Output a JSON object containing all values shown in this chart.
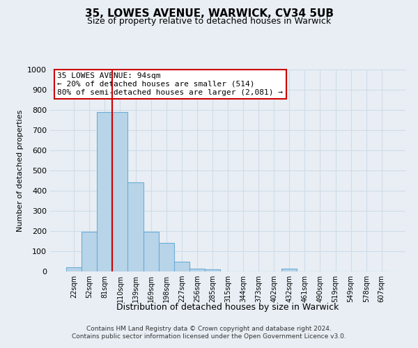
{
  "title": "35, LOWES AVENUE, WARWICK, CV34 5UB",
  "subtitle": "Size of property relative to detached houses in Warwick",
  "xlabel": "Distribution of detached houses by size in Warwick",
  "ylabel": "Number of detached properties",
  "bar_labels": [
    "22sqm",
    "52sqm",
    "81sqm",
    "110sqm",
    "139sqm",
    "169sqm",
    "198sqm",
    "227sqm",
    "256sqm",
    "285sqm",
    "315sqm",
    "344sqm",
    "373sqm",
    "402sqm",
    "432sqm",
    "461sqm",
    "490sqm",
    "519sqm",
    "549sqm",
    "578sqm",
    "607sqm"
  ],
  "bar_heights": [
    20,
    195,
    790,
    790,
    440,
    195,
    140,
    50,
    15,
    10,
    0,
    0,
    0,
    0,
    15,
    0,
    0,
    0,
    0,
    0,
    0
  ],
  "bar_color": "#b8d4e8",
  "bar_edge_color": "#6baed6",
  "property_line_color": "#cc0000",
  "annotation_text": "35 LOWES AVENUE: 94sqm\n← 20% of detached houses are smaller (514)\n80% of semi-detached houses are larger (2,081) →",
  "ylim": [
    0,
    1000
  ],
  "yticks": [
    0,
    100,
    200,
    300,
    400,
    500,
    600,
    700,
    800,
    900,
    1000
  ],
  "footer_line1": "Contains HM Land Registry data © Crown copyright and database right 2024.",
  "footer_line2": "Contains public sector information licensed under the Open Government Licence v3.0.",
  "background_color": "#e8eef4",
  "grid_color": "#d0dce8"
}
